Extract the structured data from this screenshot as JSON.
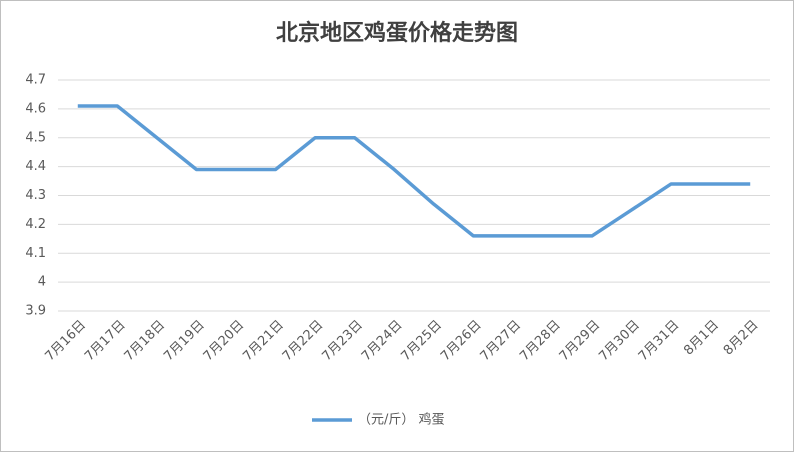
{
  "chart_data": {
    "type": "line",
    "title": "北京地区鸡蛋价格走势图",
    "categories": [
      "7月16日",
      "7月17日",
      "7月18日",
      "7月19日",
      "7月20日",
      "7月21日",
      "7月22日",
      "7月23日",
      "7月24日",
      "7月25日",
      "7月26日",
      "7月27日",
      "7月28日",
      "7月29日",
      "7月30日",
      "7月31日",
      "8月1日",
      "8月2日"
    ],
    "series": [
      {
        "name": "（元/斤） 鸡蛋",
        "color": "#5b9bd5",
        "values": [
          4.61,
          4.61,
          4.5,
          4.39,
          4.39,
          4.39,
          4.5,
          4.5,
          4.39,
          4.27,
          4.16,
          4.16,
          4.16,
          4.16,
          4.25,
          4.34,
          4.34,
          4.34
        ]
      }
    ],
    "ylim": [
      3.9,
      4.7
    ],
    "yticks": [
      3.9,
      4.0,
      4.1,
      4.2,
      4.3,
      4.4,
      4.5,
      4.6,
      4.7
    ],
    "grid": true
  }
}
